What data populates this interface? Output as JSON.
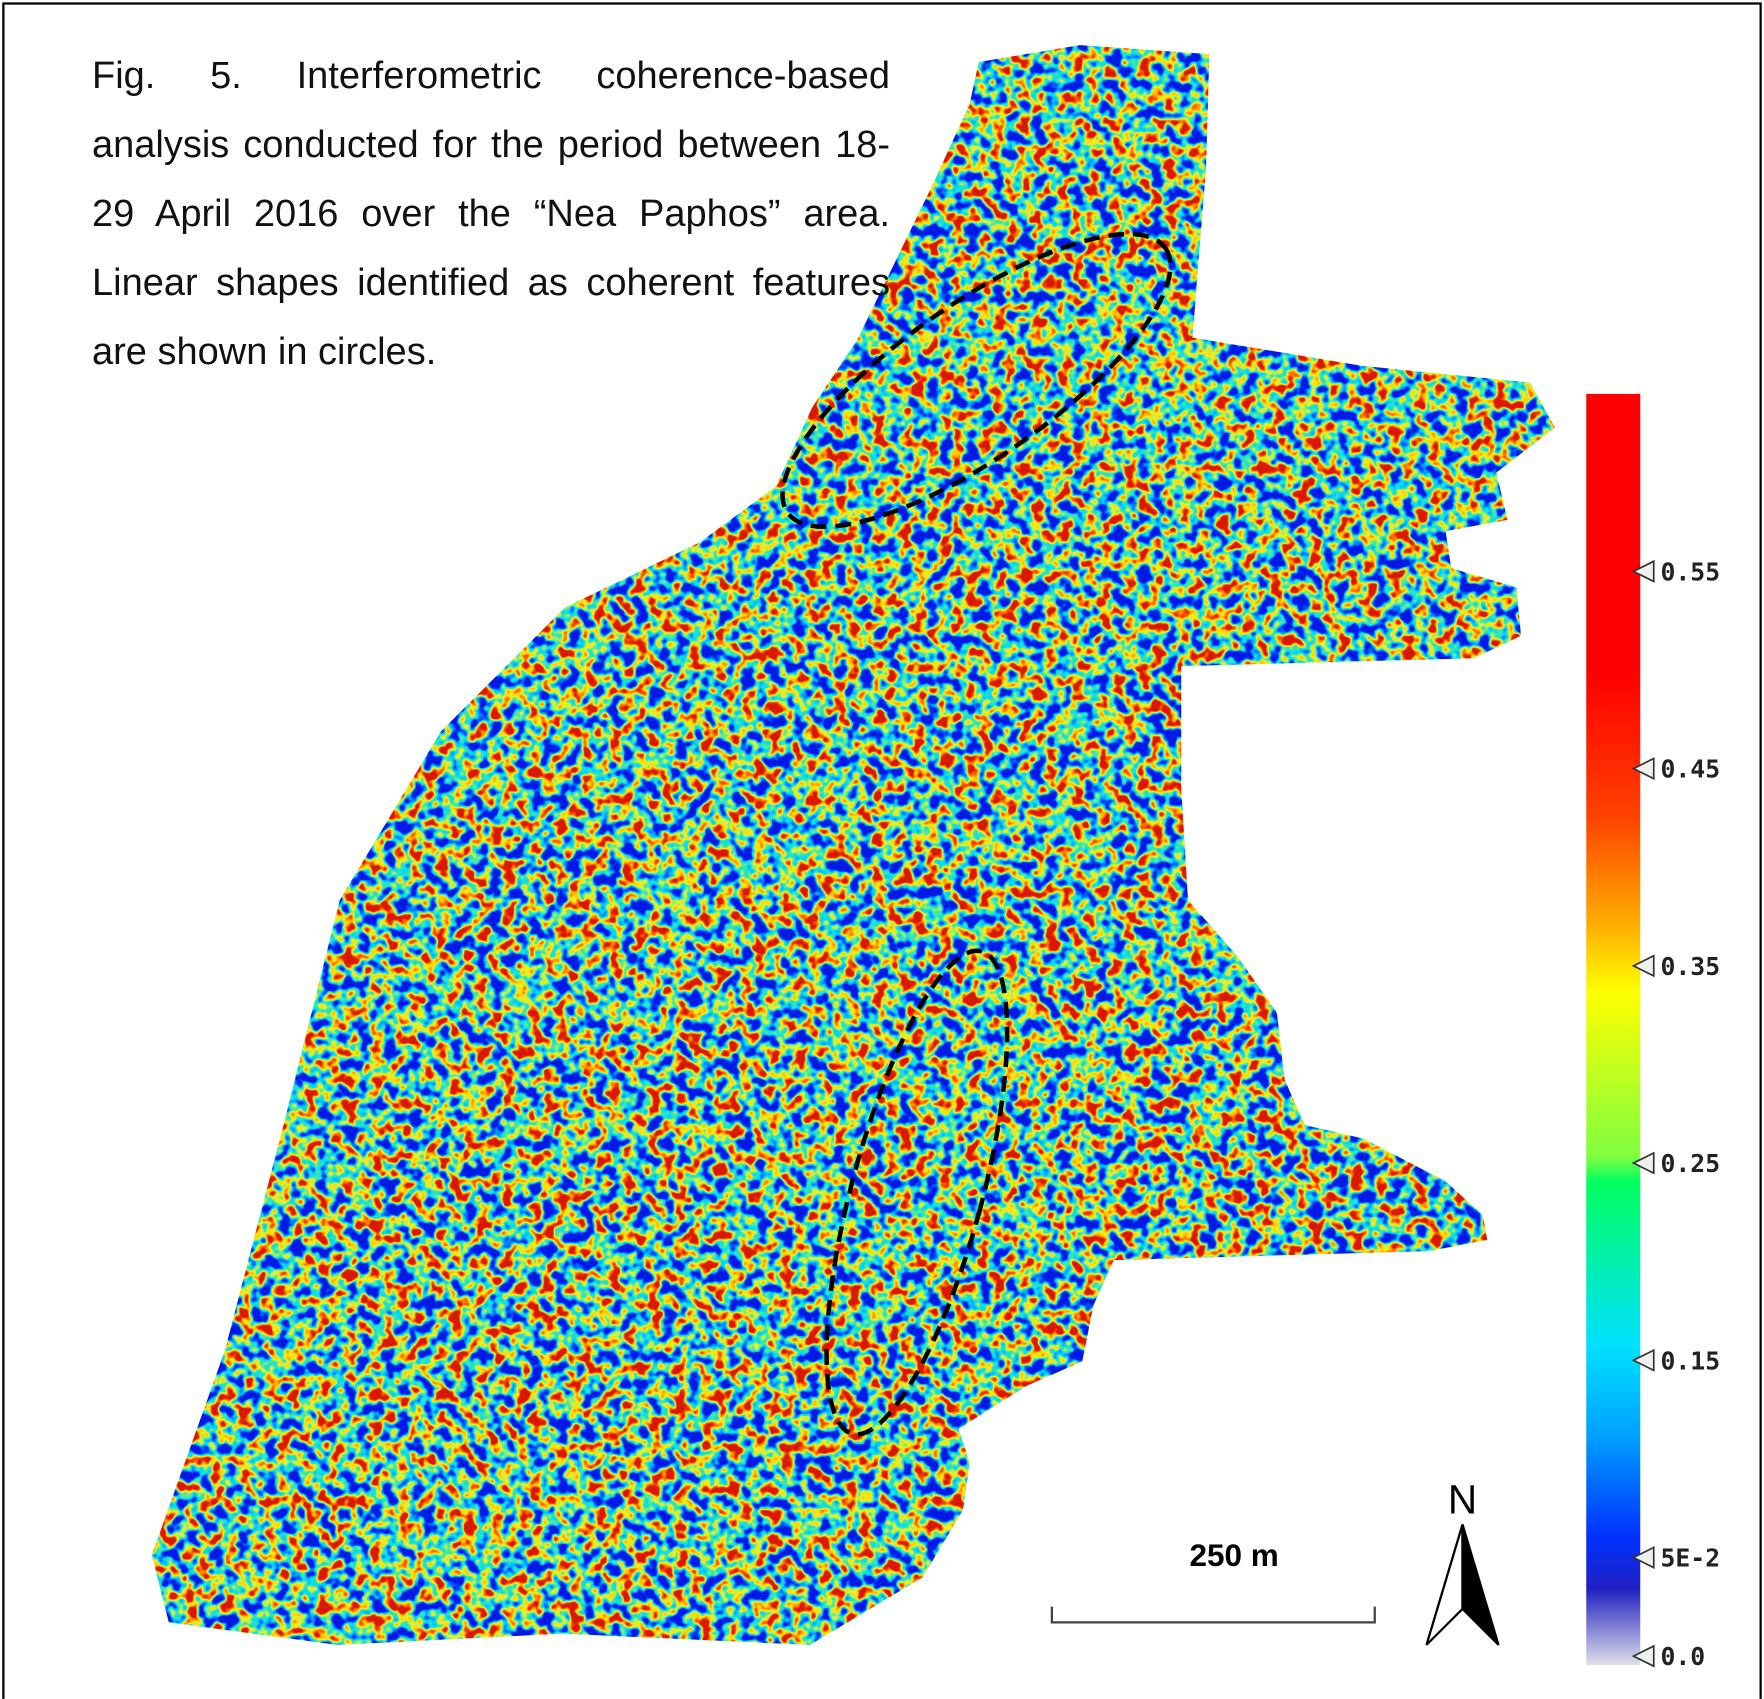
{
  "caption": "Fig. 5. Interferometric coherence-based analysis conducted for the period between 18-29 April 2016 over the “Nea Paphos” area. Linear shapes identified as coherent features are shown in circles.",
  "colorbar": {
    "range": [
      0,
      0.64
    ],
    "ticks": [
      0.55,
      0.45,
      0.35,
      0.25,
      0.15,
      {
        "value": 0.05,
        "label": "5E-2"
      },
      {
        "value": 0,
        "label": "0.0"
      }
    ]
  },
  "scale_bar": "250 m",
  "north": "N"
}
